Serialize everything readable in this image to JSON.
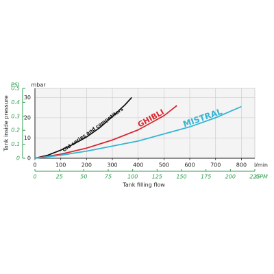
{
  "chart_data": {
    "type": "line",
    "y_label": "Tank inside pressure",
    "y_unit": "mbar",
    "y2_unit": "PSI",
    "x_label": "Tank filling flow",
    "x_unit": "l/min",
    "x2_unit": "GPM",
    "xlim": [
      0,
      852
    ],
    "xticks": [
      0,
      100,
      200,
      300,
      400,
      500,
      600,
      700,
      800
    ],
    "x2lim": [
      0,
      225
    ],
    "x2ticks": [
      0,
      25,
      50,
      75,
      100,
      125,
      150,
      175,
      200,
      225
    ],
    "ylim": [
      0,
      34.5
    ],
    "yticks": [
      0,
      10,
      20,
      30
    ],
    "y2lim": [
      0,
      0.5
    ],
    "y2ticks": [
      0,
      0.1,
      0.2,
      0.3,
      0.4,
      0.5
    ],
    "grid": true,
    "axis_color": "#2e9e4f",
    "series": [
      {
        "name": "Old series and competitors",
        "color": "#111111",
        "x": [
          0,
          50,
          100,
          150,
          200,
          250,
          300,
          350,
          375
        ],
        "values": [
          0,
          1.5,
          4,
          7,
          10.5,
          15,
          20.5,
          26.5,
          30
        ]
      },
      {
        "name": "GHIBLI",
        "color": "#d9252e",
        "x": [
          0,
          100,
          200,
          300,
          400,
          500,
          550
        ],
        "values": [
          0,
          2,
          5,
          9,
          14,
          21,
          26
        ]
      },
      {
        "name": "MISTRAL",
        "color": "#35b5d3",
        "x": [
          0,
          100,
          200,
          300,
          400,
          500,
          600,
          700,
          800
        ],
        "values": [
          0,
          1.5,
          3.5,
          6,
          8.5,
          12,
          15.5,
          20,
          25.5
        ]
      }
    ]
  }
}
